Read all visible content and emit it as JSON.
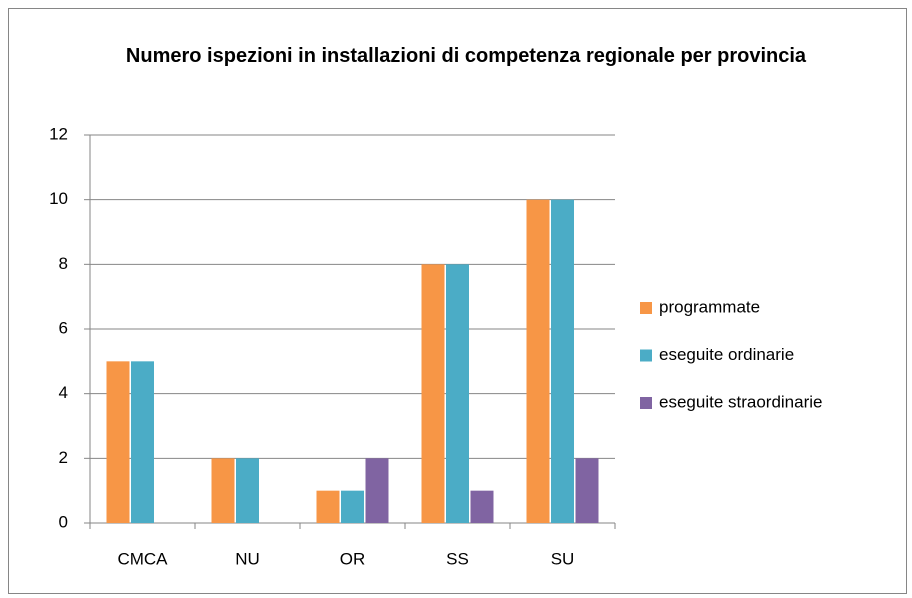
{
  "chart_data": {
    "type": "bar",
    "title": "Numero ispezioni in installazioni di competenza regionale per provincia",
    "categories": [
      "CMCA",
      "NU",
      "OR",
      "SS",
      "SU"
    ],
    "series": [
      {
        "name": "programmate",
        "color": "#f79646",
        "values": [
          5,
          2,
          1,
          8,
          10
        ]
      },
      {
        "name": "eseguite ordinarie",
        "color": "#4bacc6",
        "values": [
          5,
          2,
          1,
          8,
          10
        ]
      },
      {
        "name": "eseguite straordinarie",
        "color": "#8064a2",
        "values": [
          0,
          0,
          2,
          1,
          2
        ]
      }
    ],
    "ylim": [
      0,
      12
    ],
    "yticks": [
      0,
      2,
      4,
      6,
      8,
      10,
      12
    ],
    "grid": true,
    "legend": "right"
  }
}
